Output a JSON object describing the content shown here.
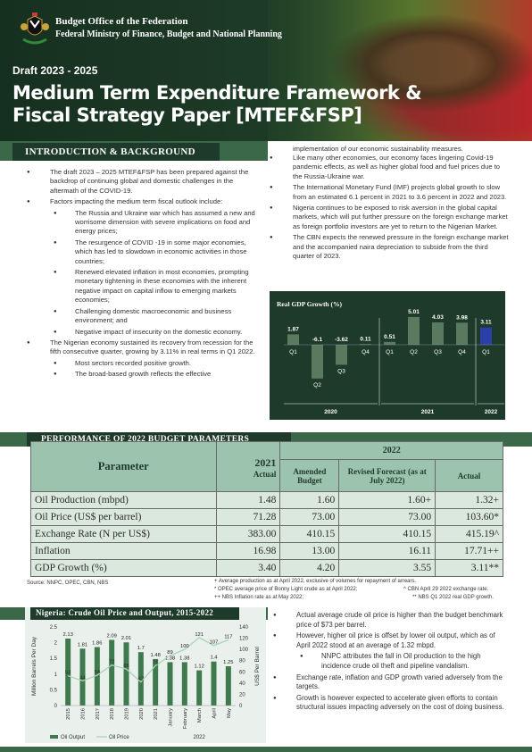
{
  "header": {
    "org_line1": "Budget  Office of the Federation",
    "org_line2": "Federal Ministry of Finance, Budget and National Planning",
    "draft": "Draft 2023 - 2025",
    "title_line1": "Medium Term Expenditure Framework &",
    "title_line2": "Fiscal Strategy Paper [MTEF&FSP]"
  },
  "intro": {
    "heading": "INTRODUCTION & BACKGROUND",
    "left": [
      {
        "text": "The draft 2023 – 2025 MTEF&FSP has been      prepared against the backdrop of continuing global and domestic challenges in the aftermath of the COVID-19."
      },
      {
        "text": "Factors impacting the medium term fiscal outlook include:"
      },
      {
        "text": "The Russia and Ukraine war which has assumed a new and worrisome dimension with severe implications on food and energy prices;",
        "sub": true
      },
      {
        "text": "The resurgence of COVID -19 in some major economies, which has led to slowdown in economic activities in those countries;",
        "sub": true
      },
      {
        "text": "Renewed elevated inflation in most economies, prompting monetary tightening in these economies with the inherent negative impact on capital inflow to emerging markets economies;",
        "sub": true
      },
      {
        "text": "Challenging domestic macroeconomic and business environment; and",
        "sub": true
      },
      {
        "text": "Negative impact of insecurity on the domestic economy.",
        "sub": true
      },
      {
        "text": "The Nigerian economy sustained its recovery from recession for  the fifth consecutive quarter, growing by 3.11% in real terms in Q1 2022."
      },
      {
        "text": "Most sectors recorded positive growth.",
        "sub": true
      },
      {
        "text": "The broad-based growth reflects the effective",
        "sub": true
      }
    ],
    "right_cont": "implementation of our economic sustainability measures.",
    "right": [
      "Like many other economies, our economy faces lingering Covid-19 pandemic effects, as well as higher global food and fuel prices due to the Russia-Ukraine war.",
      "The International Monetary Fund (IMF) projects global growth to slow from an estimated 6.1 percent in 2021 to 3.6 percent in 2022 and 2023.",
      "Nigeria continues to be exposed to risk aversion in the global capital markets, which will put further pressure on the foreign exchange market as foreign portfolio investors are yet to return to the Nigerian Market.",
      "The CBN expects the renewed pressure in the foreign exchange market and the accompanied naira depreciation to subside from the third quarter of 2023."
    ]
  },
  "gdp_chart": {
    "title": "Real GDP Growth (%)",
    "bar_color": "#5a7a5f",
    "highlight_color": "#2b3fa8",
    "bars": [
      {
        "q": "Q1",
        "v": 1.87,
        "label": "1.87"
      },
      {
        "q": "Q2",
        "v": -6.1,
        "label": "-6.1"
      },
      {
        "q": "Q3",
        "v": -3.62,
        "label": "-3.62"
      },
      {
        "q": "Q4",
        "v": 0.11,
        "label": "0.11"
      },
      {
        "q": "Q1",
        "v": 0.51,
        "label": "0.51"
      },
      {
        "q": "Q2",
        "v": 5.01,
        "label": "5.01"
      },
      {
        "q": "Q3",
        "v": 4.03,
        "label": "4.03"
      },
      {
        "q": "Q4",
        "v": 3.98,
        "label": "3.98"
      },
      {
        "q": "Q1",
        "v": 3.11,
        "label": "3.11"
      }
    ],
    "years": [
      "2020",
      "2021",
      "2022"
    ]
  },
  "performance": {
    "heading": "PERFORMANCE OF 2022 BUDGET PARAMETERS",
    "col_param": "Parameter",
    "col_2021": "2021",
    "col_2021_sub": "Actual",
    "col_2022": "2022",
    "col_amended": "Amended Budget",
    "col_revised": "Revised Forecast (as at July 2022)",
    "col_actual": "Actual",
    "rows": [
      {
        "p": "Oil Production (mbpd)",
        "a": "1.48",
        "b": "1.60",
        "c": "1.60+",
        "d": "1.32+"
      },
      {
        "p": "Oil Price (US$ per barrel)",
        "a": "71.28",
        "b": "73.00",
        "c": "73.00",
        "d": "103.60*"
      },
      {
        "p": "Exchange Rate (N per US$)",
        "a": "383.00",
        "b": "410.15",
        "c": "410.15",
        "d": "415.19^"
      },
      {
        "p": "Inflation",
        "a": "16.98",
        "b": "13.00",
        "c": "16.11",
        "d": "17.71++"
      },
      {
        "p": "GDP Growth (%)",
        "a": "3.40",
        "b": "4.20",
        "c": "3.55",
        "d": "3.11**"
      }
    ],
    "source": "Source: NNPC, OPEC, CBN, NBS",
    "note1": "+  Average production as at April 2022, exclusive of volumes for repayment of arrears.",
    "note2": "*  OPEC average price of Bonny Light crude as at April 2022;",
    "note2b": "^ CBN April 29 2022 exchange rate.",
    "note3": "++  NBS Inflation rate as at May 2022;",
    "note3b": "** NBS Q1 2022 real GDP growth."
  },
  "chart_data": {
    "type": "bar",
    "title": "Nigeria: Crude Oil Price and Output, 2015-2022",
    "categories": [
      "2015",
      "2016",
      "2017",
      "2018",
      "2019",
      "2020",
      "2021",
      "January",
      "February",
      "March",
      "April",
      "May"
    ],
    "series": [
      {
        "name": "Oil Output",
        "type": "bar",
        "axis": "left",
        "values": [
          2.13,
          1.81,
          1.86,
          2.09,
          2.01,
          1.7,
          1.48,
          1.38,
          1.38,
          1.12,
          1.4,
          1.25
        ],
        "color": "#3f7a4f"
      },
      {
        "name": "Oil Price",
        "type": "line",
        "axis": "right",
        "values": [
          53,
          44,
          54,
          72,
          65,
          42,
          71,
          89,
          100,
          121,
          107,
          117
        ],
        "color": "#a9d4b5"
      }
    ],
    "ylabel": "Million Barrels Per Day",
    "y2label": "US$ Per Barrel",
    "ylim": [
      0,
      2.5
    ],
    "y2lim": [
      0,
      140
    ],
    "yticks": [
      "0",
      "0.5",
      "1",
      "1.5",
      "2",
      "2.5"
    ],
    "y2ticks": [
      "0",
      "20",
      "40",
      "60",
      "80",
      "100",
      "120",
      "140"
    ],
    "group_label": "2022",
    "legend": [
      "Oil Output",
      "Oil Price"
    ]
  },
  "oil_notes": [
    {
      "text": "Actual average crude oil price is higher than the budget benchmark price of $73 per barrel."
    },
    {
      "text": "However, higher oil price is offset by lower oil output, which as of April 2022 stood at an average of 1.32 mbpd."
    },
    {
      "text": "NNPC attributes the fall in Oil production to the high incidence crude oil theft and pipeline vandalism.",
      "sub": true
    },
    {
      "text": "Exchange rate, inflation and GDP growth varied adversely from the targets."
    },
    {
      "text": "Growth is however expected to accelerate given efforts to contain structural issues impacting adversely on the cost of doing business."
    }
  ]
}
